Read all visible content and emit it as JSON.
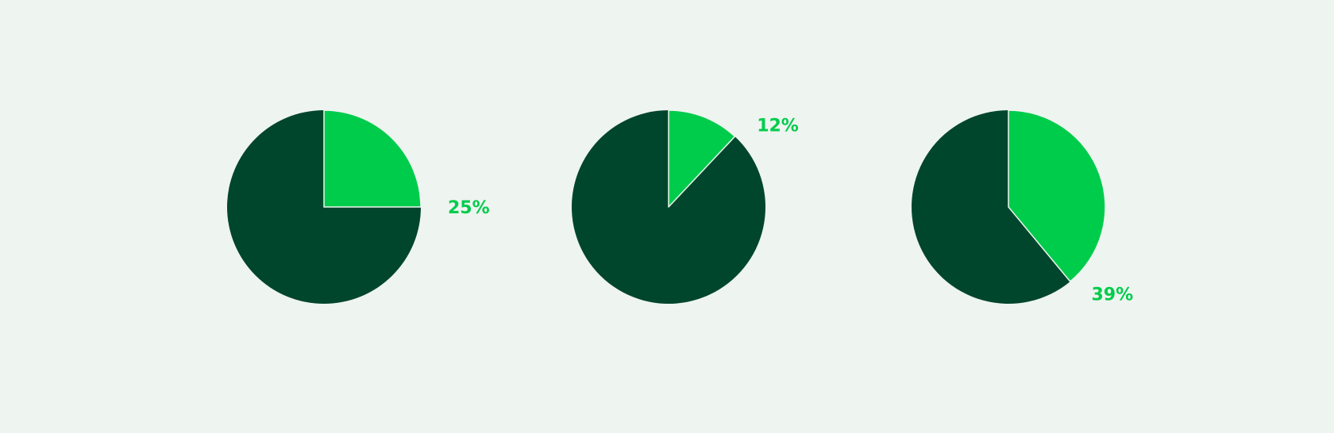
{
  "colors": {
    "background": "#eef4ef",
    "highlight": "#00cc4c",
    "remainder": "#00462c"
  },
  "chart_data": [
    {
      "type": "pie",
      "values": [
        25,
        75
      ],
      "label": "25%",
      "label_position": "right"
    },
    {
      "type": "pie",
      "values": [
        12,
        88
      ],
      "label": "12%",
      "label_position": "top-right"
    },
    {
      "type": "pie",
      "values": [
        39,
        61
      ],
      "label": "39%",
      "label_position": "bottom-right"
    }
  ]
}
